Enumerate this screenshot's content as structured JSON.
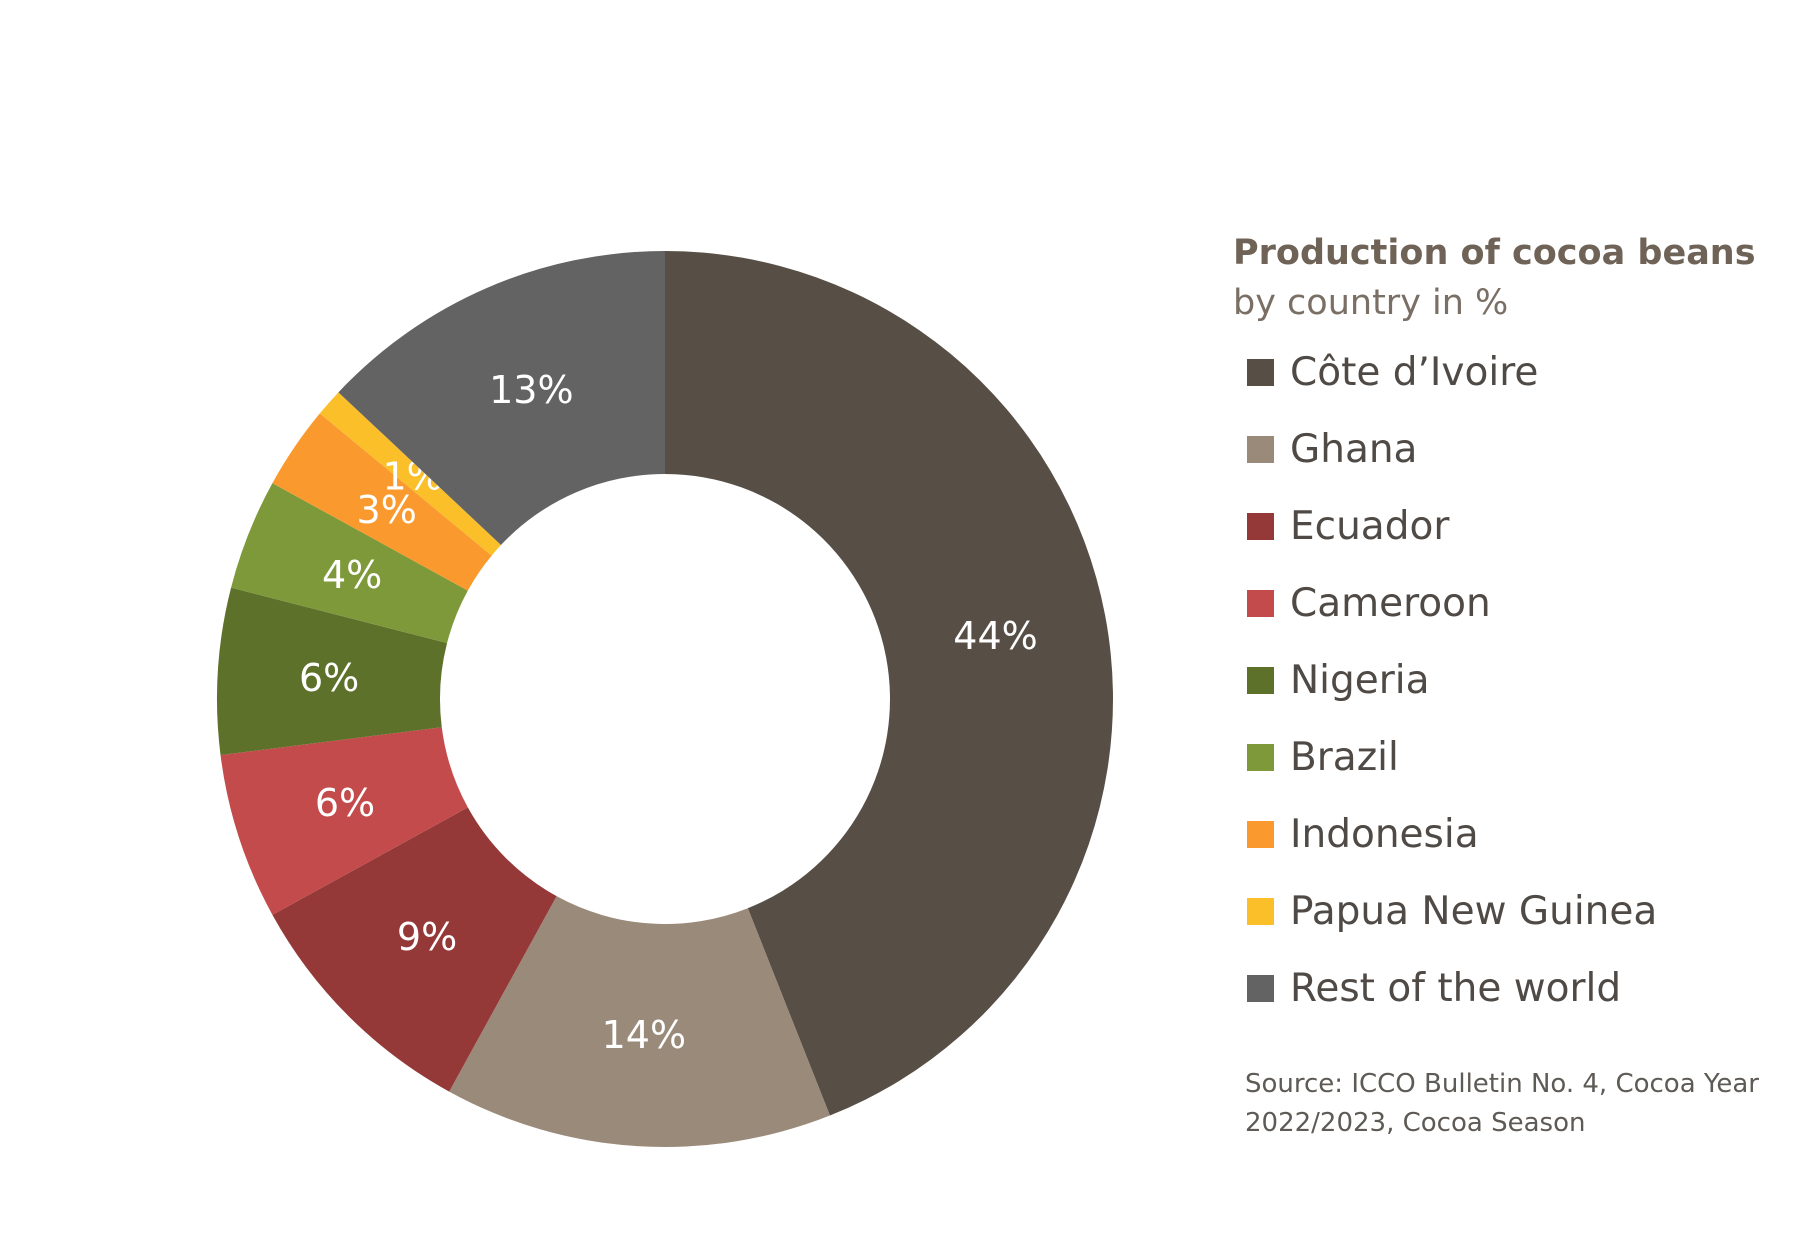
{
  "chart_data": {
    "type": "pie",
    "variant": "donut",
    "title": "Production of cocoa beans",
    "subtitle": "by country in %",
    "legend_position": "right",
    "categories": [
      "Côte d’Ivoire",
      "Ghana",
      "Ecuador",
      "Cameroon",
      "Nigeria",
      "Brazil",
      "Indonesia",
      "Papua New Guinea",
      "Rest of the world"
    ],
    "values": [
      44,
      14,
      9,
      6,
      6,
      4,
      3,
      1,
      13
    ],
    "data_labels": [
      "44%",
      "14%",
      "9%",
      "6%",
      "6%",
      "4%",
      "3%",
      "1%",
      "13%"
    ],
    "colors": [
      "#574e46",
      "#9a8a7a",
      "#943838",
      "#c44b4b",
      "#5e712b",
      "#7e9939",
      "#fa9a2e",
      "#fbbf2a",
      "#636363"
    ],
    "source": "Source: ICCO Bulletin No. 4, Cocoa Year 2022/2023, Cocoa Season"
  }
}
